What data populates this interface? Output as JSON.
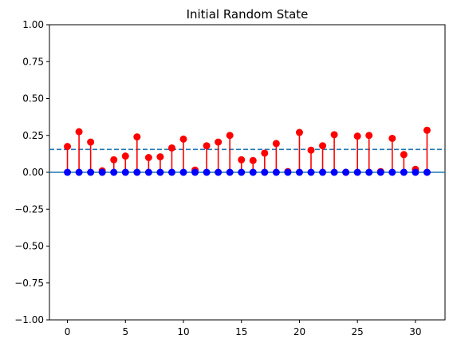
{
  "chart_data": {
    "type": "stem",
    "title": "Initial Random State",
    "xlabel": "",
    "ylabel": "",
    "xlim": [
      -1.55,
      32.55
    ],
    "ylim": [
      -1.0,
      1.0
    ],
    "x_ticks": [
      0,
      5,
      10,
      15,
      20,
      25,
      30
    ],
    "x_tick_labels": [
      "0",
      "5",
      "10",
      "15",
      "20",
      "25",
      "30"
    ],
    "y_ticks": [
      1.0,
      0.75,
      0.5,
      0.25,
      0.0,
      -0.25,
      -0.5,
      -0.75,
      -1.0
    ],
    "y_tick_labels": [
      "1.00",
      "0.75",
      "0.50",
      "0.25",
      "0.00",
      "−0.25",
      "−0.50",
      "−0.75",
      "−1.00"
    ],
    "grid": false,
    "series": [
      {
        "color": "#ff0000",
        "x": [
          0,
          1,
          2,
          3,
          4,
          5,
          6,
          7,
          8,
          9,
          10,
          11,
          12,
          13,
          14,
          15,
          16,
          17,
          18,
          19,
          20,
          21,
          22,
          23,
          24,
          25,
          26,
          27,
          28,
          29,
          30,
          31
        ],
        "values": [
          0.175,
          0.275,
          0.205,
          0.01,
          0.085,
          0.11,
          0.24,
          0.1,
          0.105,
          0.165,
          0.225,
          0.015,
          0.18,
          0.205,
          0.25,
          0.085,
          0.08,
          0.13,
          0.195,
          0.005,
          0.27,
          0.15,
          0.18,
          0.255,
          0.0,
          0.245,
          0.25,
          0.005,
          0.23,
          0.12,
          0.02,
          0.285
        ]
      },
      {
        "color": "#0000ff",
        "x": [
          0,
          1,
          2,
          3,
          4,
          5,
          6,
          7,
          8,
          9,
          10,
          11,
          12,
          13,
          14,
          15,
          16,
          17,
          18,
          19,
          20,
          21,
          22,
          23,
          24,
          25,
          26,
          27,
          28,
          29,
          30,
          31
        ],
        "values": [
          0,
          0,
          0,
          0,
          0,
          0,
          0,
          0,
          0,
          0,
          0,
          0,
          0,
          0,
          0,
          0,
          0,
          0,
          0,
          0,
          0,
          0,
          0,
          0,
          0,
          0,
          0,
          0,
          0,
          0,
          0,
          0
        ]
      }
    ],
    "reference_lines": [
      {
        "y": 0.155,
        "style": "dashed",
        "color": "#1f77b4"
      },
      {
        "y": 0.0,
        "style": "solid",
        "color": "#1f77b4"
      }
    ]
  }
}
